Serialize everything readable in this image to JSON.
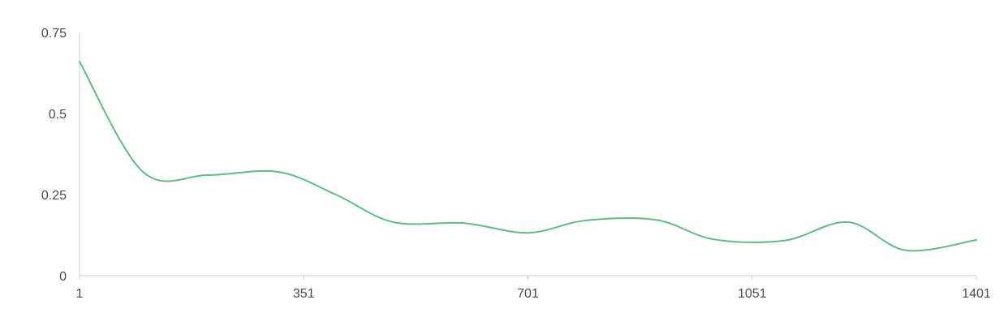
{
  "chart_data": {
    "type": "line",
    "title": "",
    "xlabel": "",
    "ylabel": "",
    "xlim": [
      1,
      1401
    ],
    "ylim": [
      0,
      0.75
    ],
    "x_ticks": [
      1,
      351,
      701,
      1051,
      1401
    ],
    "x_tick_labels": [
      "1",
      "351",
      "701",
      "1051",
      "1401"
    ],
    "y_ticks": [
      0,
      0.25,
      0.5,
      0.75
    ],
    "y_tick_labels": [
      "0",
      "0.25",
      "0.5",
      "0.75"
    ],
    "grid": false,
    "legend": "none",
    "smooth": true,
    "series": [
      {
        "color": "#5cbf7f",
        "points": [
          [
            1,
            0.66
          ],
          [
            100,
            0.32
          ],
          [
            201,
            0.31
          ],
          [
            311,
            0.32
          ],
          [
            401,
            0.25
          ],
          [
            491,
            0.165
          ],
          [
            601,
            0.162
          ],
          [
            701,
            0.132
          ],
          [
            791,
            0.17
          ],
          [
            901,
            0.172
          ],
          [
            991,
            0.112
          ],
          [
            1101,
            0.108
          ],
          [
            1201,
            0.165
          ],
          [
            1291,
            0.078
          ],
          [
            1401,
            0.11
          ]
        ]
      }
    ]
  }
}
